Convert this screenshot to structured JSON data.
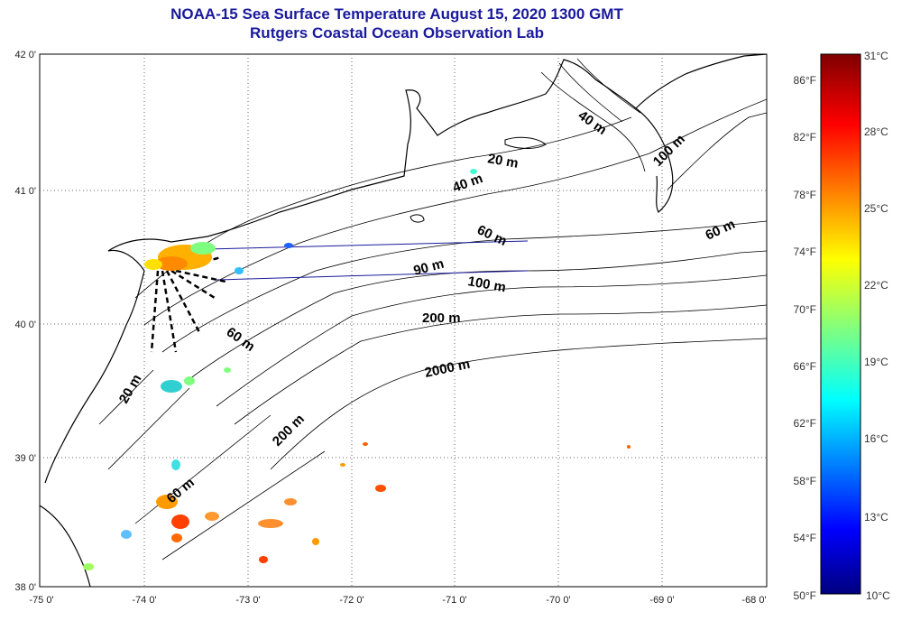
{
  "header": {
    "title": "NOAA-15 Sea Surface Temperature August 15, 2020 1300 GMT",
    "subtitle": "Rutgers Coastal Ocean Observation Lab"
  },
  "axes": {
    "lat_labels": [
      "42 0'",
      "41 0'",
      "40 0'",
      "39 0'",
      "38 0'"
    ],
    "lon_labels": [
      "-75 0'",
      "-74 0'",
      "-73 0'",
      "-72 0'",
      "-71 0'",
      "-70 0'",
      "-69 0'",
      "-68 0'"
    ],
    "grid": "dotted"
  },
  "depth_labels": [
    "20 m",
    "40 m",
    "40 m",
    "100 m",
    "60 m",
    "60 m",
    "90 m",
    "100 m",
    "200 m",
    "2000 m",
    "60 m",
    "20 m",
    "200 m",
    "60 m"
  ],
  "colorbar": {
    "fahrenheit": [
      "86°F",
      "82°F",
      "78°F",
      "74°F",
      "70°F",
      "66°F",
      "62°F",
      "58°F",
      "54°F",
      "50°F"
    ],
    "celsius": [
      "31°C",
      "28°C",
      "25°C",
      "22°C",
      "19°C",
      "16°C",
      "13°C",
      "10°C"
    ],
    "range_c": [
      10,
      31
    ],
    "colormap": "jet"
  },
  "colors": {
    "title": "#1a1a9c",
    "transect": "#1a1a9c",
    "land": "#ffffff",
    "coast": "#000000"
  }
}
